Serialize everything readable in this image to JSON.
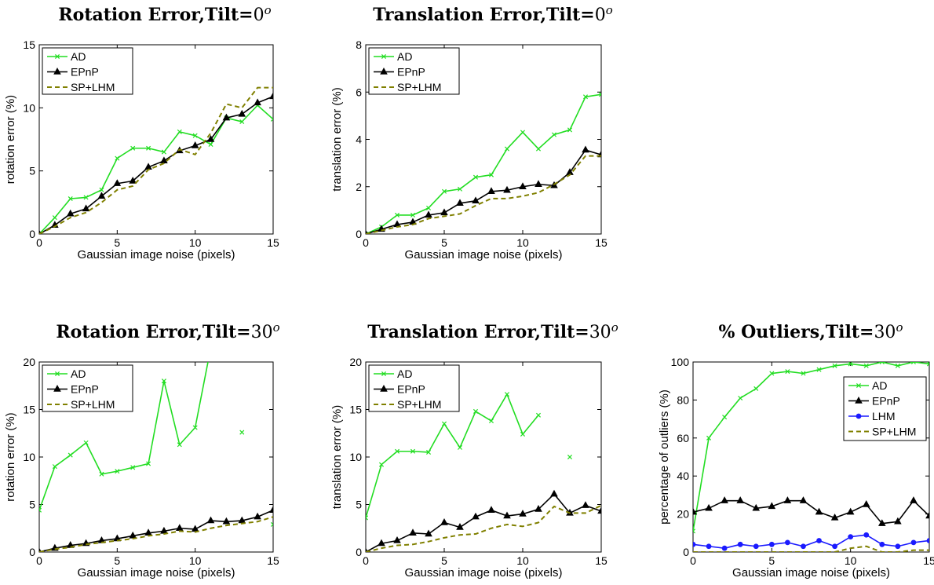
{
  "figure": {
    "xlabel": "Gaussian image noise (pixels)",
    "series_colors": {
      "AD": "#22dd22",
      "EPnP": "#000000",
      "LHM": "#1a1aff",
      "SP+LHM": "#808000"
    }
  },
  "chart_data": [
    {
      "type": "line",
      "title": "Rotation Error,Tilt=0",
      "title_main": "Rotation Error,Tilt=",
      "title_num": "0",
      "title_sup": "o",
      "xlabel": "Gaussian image noise (pixels)",
      "ylabel": "rotation error (%)",
      "xlim": [
        0,
        15
      ],
      "ylim": [
        0,
        15
      ],
      "xticks": [
        0,
        5,
        10,
        15
      ],
      "yticks": [
        0,
        5,
        10,
        15
      ],
      "grid": false,
      "legend_position": "top-left",
      "x": [
        0,
        1,
        2,
        3,
        4,
        5,
        6,
        7,
        8,
        9,
        10,
        11,
        12,
        13,
        14,
        15
      ],
      "series": [
        {
          "name": "AD",
          "values": [
            0,
            1.3,
            2.8,
            2.9,
            3.5,
            6.0,
            6.8,
            6.8,
            6.5,
            8.1,
            7.8,
            7.1,
            9.2,
            8.9,
            10.2,
            9.1
          ]
        },
        {
          "name": "EPnP",
          "values": [
            0,
            0.7,
            1.6,
            2.0,
            3.0,
            4.0,
            4.2,
            5.3,
            5.8,
            6.6,
            7.0,
            7.5,
            9.2,
            9.5,
            10.4,
            10.9
          ]
        },
        {
          "name": "SP+LHM",
          "values": [
            0,
            0.6,
            1.3,
            1.7,
            2.5,
            3.5,
            3.8,
            5.1,
            5.6,
            6.7,
            6.3,
            8.0,
            10.3,
            10.0,
            11.6,
            11.6
          ]
        }
      ]
    },
    {
      "type": "line",
      "title": "Translation Error,Tilt=0",
      "title_main": "Translation Error,Tilt=",
      "title_num": "0",
      "title_sup": "o",
      "xlabel": "Gaussian image noise (pixels)",
      "ylabel": "translation error (%)",
      "xlim": [
        0,
        15
      ],
      "ylim": [
        0,
        8
      ],
      "xticks": [
        0,
        5,
        10,
        15
      ],
      "yticks": [
        0,
        2,
        4,
        6,
        8
      ],
      "grid": false,
      "legend_position": "top-left",
      "x": [
        0,
        1,
        2,
        3,
        4,
        5,
        6,
        7,
        8,
        9,
        10,
        11,
        12,
        13,
        14,
        15
      ],
      "series": [
        {
          "name": "AD",
          "values": [
            0,
            0.3,
            0.8,
            0.8,
            1.1,
            1.8,
            1.9,
            2.4,
            2.5,
            3.6,
            4.3,
            3.6,
            4.2,
            4.4,
            5.8,
            5.9
          ]
        },
        {
          "name": "EPnP",
          "values": [
            0,
            0.2,
            0.4,
            0.5,
            0.8,
            0.9,
            1.3,
            1.4,
            1.8,
            1.85,
            2.0,
            2.1,
            2.05,
            2.6,
            3.55,
            3.35
          ]
        },
        {
          "name": "SP+LHM",
          "values": [
            0,
            0.15,
            0.3,
            0.4,
            0.65,
            0.75,
            0.85,
            1.2,
            1.5,
            1.5,
            1.6,
            1.75,
            2.1,
            2.5,
            3.3,
            3.3
          ]
        }
      ]
    },
    {
      "type": "line",
      "title": "Rotation Error,Tilt=30",
      "title_main": "Rotation Error,Tilt=",
      "title_num": "30",
      "title_sup": "o",
      "xlabel": "Gaussian image noise (pixels)",
      "ylabel": "rotation error (%)",
      "xlim": [
        0,
        15
      ],
      "ylim": [
        0,
        20
      ],
      "xticks": [
        0,
        5,
        10,
        15
      ],
      "yticks": [
        0,
        5,
        10,
        15,
        20
      ],
      "grid": false,
      "legend_position": "top-left",
      "x": [
        0,
        1,
        2,
        3,
        4,
        5,
        6,
        7,
        8,
        9,
        10,
        11,
        12,
        13,
        14,
        15
      ],
      "series": [
        {
          "name": "AD",
          "values": [
            4.4,
            9.0,
            10.2,
            11.5,
            8.2,
            8.5,
            8.9,
            9.3,
            18.0,
            11.3,
            13.1,
            21.5,
            null,
            12.6,
            null,
            2.9
          ]
        },
        {
          "name": "EPnP",
          "values": [
            0,
            0.4,
            0.7,
            0.9,
            1.2,
            1.4,
            1.7,
            2.0,
            2.2,
            2.5,
            2.4,
            3.3,
            3.2,
            3.3,
            3.7,
            4.4
          ]
        },
        {
          "name": "SP+LHM",
          "values": [
            0,
            0.3,
            0.5,
            0.8,
            1.0,
            1.2,
            1.4,
            1.7,
            1.9,
            2.2,
            2.1,
            2.5,
            2.8,
            3.0,
            3.2,
            3.7
          ]
        }
      ]
    },
    {
      "type": "line",
      "title": "Translation Error,Tilt=30",
      "title_main": "Translation Error,Tilt=",
      "title_num": "30",
      "title_sup": "o",
      "xlabel": "Gaussian image noise (pixels)",
      "ylabel": "translation error (%)",
      "xlim": [
        0,
        15
      ],
      "ylim": [
        0,
        20
      ],
      "xticks": [
        0,
        5,
        10,
        15
      ],
      "yticks": [
        0,
        5,
        10,
        15,
        20
      ],
      "grid": false,
      "legend_position": "top-left",
      "x": [
        0,
        1,
        2,
        3,
        4,
        5,
        6,
        7,
        8,
        9,
        10,
        11,
        12,
        13,
        14,
        15
      ],
      "series": [
        {
          "name": "AD",
          "values": [
            3.6,
            9.2,
            10.6,
            10.6,
            10.5,
            13.5,
            11.0,
            14.8,
            13.8,
            16.6,
            12.4,
            14.4,
            null,
            10.0,
            null,
            null
          ]
        },
        {
          "name": "EPnP",
          "values": [
            0,
            0.9,
            1.2,
            2.0,
            1.9,
            3.1,
            2.6,
            3.7,
            4.4,
            3.8,
            4.0,
            4.5,
            6.1,
            4.1,
            4.9,
            4.3
          ]
        },
        {
          "name": "SP+LHM",
          "values": [
            0,
            0.4,
            0.7,
            0.8,
            1.1,
            1.5,
            1.8,
            1.9,
            2.5,
            2.9,
            2.7,
            3.1,
            4.8,
            4.1,
            4.1,
            4.9
          ]
        }
      ]
    },
    {
      "type": "line",
      "title": "% Outliers,Tilt=30",
      "title_main": "% Outliers,Tilt=",
      "title_num": "30",
      "title_sup": "o",
      "xlabel": "Gaussian image noise (pixels)",
      "ylabel": "percentage of outliers (%)",
      "xlim": [
        0,
        15
      ],
      "ylim": [
        0,
        100
      ],
      "xticks": [
        0,
        5,
        10,
        15
      ],
      "yticks": [
        0,
        20,
        40,
        60,
        80,
        100
      ],
      "grid": false,
      "legend_position": "right",
      "x": [
        0,
        1,
        2,
        3,
        4,
        5,
        6,
        7,
        8,
        9,
        10,
        11,
        12,
        13,
        14,
        15
      ],
      "series": [
        {
          "name": "AD",
          "values": [
            11,
            60,
            71,
            81,
            86,
            94,
            95,
            94,
            96,
            98,
            99,
            98,
            100,
            98,
            100,
            99
          ]
        },
        {
          "name": "EPnP",
          "values": [
            21,
            23,
            27,
            27,
            23,
            24,
            27,
            27,
            21,
            18,
            21,
            25,
            15,
            16,
            27,
            19
          ]
        },
        {
          "name": "LHM",
          "values": [
            4,
            3,
            2,
            4,
            3,
            4,
            5,
            3,
            6,
            3,
            8,
            9,
            4,
            3,
            5,
            6
          ]
        },
        {
          "name": "SP+LHM",
          "values": [
            0,
            0,
            0,
            0,
            0,
            0,
            0,
            0,
            0,
            0,
            2,
            3,
            0,
            0,
            1,
            1
          ]
        }
      ]
    }
  ]
}
